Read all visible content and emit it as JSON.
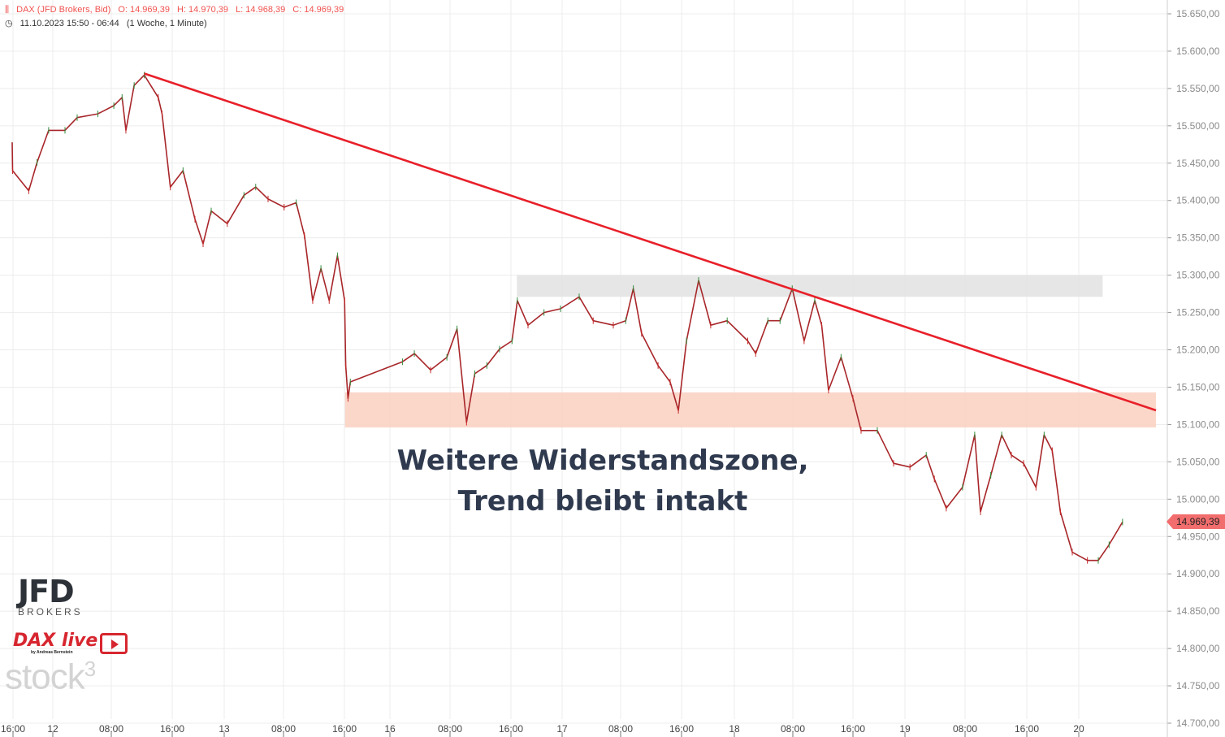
{
  "header": {
    "instrument": "DAX (JFD Brokers, Bid)",
    "open": "O: 14.969,39",
    "high": "H: 14.970,39",
    "low": "L: 14.968,39",
    "close": "C: 14.969,39",
    "range": "11.10.2023 15:50 - 06:44",
    "period": "(1 Woche, 1 Minute)",
    "icons": [
      "candlestick-icon",
      "clock-icon"
    ]
  },
  "annotation": {
    "line1": "Weitere Widerstandszone,",
    "line2": "Trend bleibt intakt"
  },
  "last_price_badge": "14.969,39",
  "logos": {
    "jfd": "JFD",
    "brokers": "BROKERS",
    "dax_live": "DAX live",
    "dax_by": "by Andreas Bernstein",
    "stock3": "stock",
    "stock3_sup": "3"
  },
  "colors": {
    "price_line": "#a8262a",
    "trendline": "#e8202a",
    "resistance_zone": "#fbd3c4",
    "upper_zone": "#e3e3e3",
    "annotation": "#2f3a4f",
    "badge": "#f26d6d",
    "header": "#ef5350"
  },
  "chart_data": {
    "type": "line",
    "title": "",
    "xlabel": "",
    "ylabel": "",
    "ylim": [
      14700,
      15650
    ],
    "grid": true,
    "y_ticks": [
      "15.650,00",
      "15.600,00",
      "15.550,00",
      "15.500,00",
      "15.450,00",
      "15.400,00",
      "15.350,00",
      "15.300,00",
      "15.250,00",
      "15.200,00",
      "15.150,00",
      "15.100,00",
      "15.050,00",
      "15.000,00",
      "14.950,00",
      "14.900,00",
      "14.850,00",
      "14.800,00",
      "14.750,00",
      "14.700,00"
    ],
    "x_ticks": [
      {
        "t": "2023-10-11 16:00",
        "label": "16:00"
      },
      {
        "t": "2023-10-12 00:00",
        "label": "12"
      },
      {
        "t": "2023-10-12 08:00",
        "label": "08:00"
      },
      {
        "t": "2023-10-12 16:00",
        "label": "16:00"
      },
      {
        "t": "2023-10-13 00:00",
        "label": "13"
      },
      {
        "t": "2023-10-13 08:00",
        "label": "08:00"
      },
      {
        "t": "2023-10-13 16:00",
        "label": "16:00"
      },
      {
        "t": "2023-10-16 00:00",
        "label": "16"
      },
      {
        "t": "2023-10-16 08:00",
        "label": "08:00"
      },
      {
        "t": "2023-10-16 16:00",
        "label": "16:00"
      },
      {
        "t": "2023-10-17 00:00",
        "label": "17"
      },
      {
        "t": "2023-10-17 08:00",
        "label": "08:00"
      },
      {
        "t": "2023-10-17 16:00",
        "label": "16:00"
      },
      {
        "t": "2023-10-18 00:00",
        "label": "18"
      },
      {
        "t": "2023-10-18 08:00",
        "label": "08:00"
      },
      {
        "t": "2023-10-18 16:00",
        "label": "16:00"
      },
      {
        "t": "2023-10-19 00:00",
        "label": "19"
      },
      {
        "t": "2023-10-19 08:00",
        "label": "08:00"
      },
      {
        "t": "2023-10-19 16:00",
        "label": "16:00"
      },
      {
        "t": "2023-10-20 00:00",
        "label": "20"
      }
    ],
    "series": [
      {
        "points": [
          [
            "2023-10-11 15:50",
            15478
          ],
          [
            "2023-10-11 15:55",
            15440
          ],
          [
            "2023-10-11 19:10",
            15413
          ],
          [
            "2023-10-11 20:50",
            15451
          ],
          [
            "2023-10-11 23:10",
            15494
          ],
          [
            "2023-10-12 01:40",
            15494
          ],
          [
            "2023-10-12 03:20",
            15511
          ],
          [
            "2023-10-12 06:10",
            15516
          ],
          [
            "2023-10-12 08:20",
            15527
          ],
          [
            "2023-10-12 09:25",
            15538
          ],
          [
            "2023-10-12 09:55",
            15494
          ],
          [
            "2023-10-12 11:00",
            15554
          ],
          [
            "2023-10-12 12:20",
            15568
          ],
          [
            "2023-10-12 14:10",
            15538
          ],
          [
            "2023-10-12 14:40",
            15516
          ],
          [
            "2023-10-12 15:45",
            15418
          ],
          [
            "2023-10-12 17:40",
            15440
          ],
          [
            "2023-10-12 19:30",
            15375
          ],
          [
            "2023-10-12 20:45",
            15342
          ],
          [
            "2023-10-12 22:00",
            15386
          ],
          [
            "2023-10-13 00:25",
            15369
          ],
          [
            "2023-10-13 02:40",
            15407
          ],
          [
            "2023-10-13 04:15",
            15418
          ],
          [
            "2023-10-13 05:55",
            15402
          ],
          [
            "2023-10-13 08:05",
            15391
          ],
          [
            "2023-10-13 09:40",
            15397
          ],
          [
            "2023-10-13 10:45",
            15353
          ],
          [
            "2023-10-13 11:50",
            15266
          ],
          [
            "2023-10-13 12:55",
            15309
          ],
          [
            "2023-10-13 14:00",
            15266
          ],
          [
            "2023-10-13 15:05",
            15326
          ],
          [
            "2023-10-13 16:10",
            15266
          ],
          [
            "2023-10-13 17:35",
            15179
          ],
          [
            "2023-10-13 20:25",
            15135
          ],
          [
            "2023-10-13 23:15",
            15157
          ],
          [
            "2023-10-16 01:40",
            15184
          ],
          [
            "2023-10-16 03:15",
            15195
          ],
          [
            "2023-10-16 05:25",
            15173
          ],
          [
            "2023-10-16 07:35",
            15190
          ],
          [
            "2023-10-16 08:55",
            15228
          ],
          [
            "2023-10-16 10:10",
            15103
          ],
          [
            "2023-10-16 11:15",
            15168
          ],
          [
            "2023-10-16 12:50",
            15179
          ],
          [
            "2023-10-16 14:30",
            15201
          ],
          [
            "2023-10-16 16:10",
            15212
          ],
          [
            "2023-10-16 17:00",
            15266
          ],
          [
            "2023-10-16 18:40",
            15233
          ],
          [
            "2023-10-16 21:10",
            15250
          ],
          [
            "2023-10-16 23:45",
            15255
          ],
          [
            "2023-10-17 02:20",
            15271
          ],
          [
            "2023-10-17 04:15",
            15239
          ],
          [
            "2023-10-17 07:00",
            15233
          ],
          [
            "2023-10-17 08:40",
            15239
          ],
          [
            "2023-10-17 09:40",
            15282
          ],
          [
            "2023-10-17 10:45",
            15222
          ],
          [
            "2023-10-17 12:55",
            15179
          ],
          [
            "2023-10-17 14:30",
            15157
          ],
          [
            "2023-10-17 15:35",
            15119
          ],
          [
            "2023-10-17 16:45",
            15212
          ],
          [
            "2023-10-17 18:35",
            15293
          ],
          [
            "2023-10-17 20:25",
            15233
          ],
          [
            "2023-10-17 22:55",
            15239
          ],
          [
            "2023-10-18 01:50",
            15212
          ],
          [
            "2023-10-18 02:55",
            15195
          ],
          [
            "2023-10-18 04:35",
            15239
          ],
          [
            "2023-10-18 06:15",
            15239
          ],
          [
            "2023-10-18 07:55",
            15282
          ],
          [
            "2023-10-18 09:30",
            15212
          ],
          [
            "2023-10-18 10:55",
            15266
          ],
          [
            "2023-10-18 11:50",
            15233
          ],
          [
            "2023-10-18 12:45",
            15146
          ],
          [
            "2023-10-18 14:25",
            15190
          ],
          [
            "2023-10-18 16:00",
            15135
          ],
          [
            "2023-10-18 17:15",
            15092
          ],
          [
            "2023-10-18 19:45",
            15092
          ],
          [
            "2023-10-18 22:15",
            15048
          ],
          [
            "2023-10-19 00:40",
            15043
          ],
          [
            "2023-10-19 02:50",
            15059
          ],
          [
            "2023-10-19 03:55",
            15027
          ],
          [
            "2023-10-19 05:30",
            14988
          ],
          [
            "2023-10-19 07:40",
            15016
          ],
          [
            "2023-10-19 09:15",
            15086
          ],
          [
            "2023-10-19 10:00",
            14983
          ],
          [
            "2023-10-19 11:20",
            15032
          ],
          [
            "2023-10-19 12:45",
            15086
          ],
          [
            "2023-10-19 14:00",
            15059
          ],
          [
            "2023-10-19 15:35",
            15048
          ],
          [
            "2023-10-19 17:25",
            15016
          ],
          [
            "2023-10-19 18:40",
            15086
          ],
          [
            "2023-10-19 19:55",
            15065
          ],
          [
            "2023-10-19 21:10",
            14983
          ],
          [
            "2023-10-19 23:00",
            14929
          ],
          [
            "2023-10-20 01:20",
            14918
          ],
          [
            "2023-10-20 03:00",
            14918
          ],
          [
            "2023-10-20 04:40",
            14939
          ],
          [
            "2023-10-20 06:44",
            14969.39
          ]
        ]
      }
    ],
    "trendline": {
      "from": [
        "2023-10-12 12:20",
        15570
      ],
      "to": [
        "2023-10-20 11:53",
        15119
      ]
    },
    "zones": [
      {
        "name": "upper-zone",
        "from": "2023-10-16 16:55",
        "to": "2023-10-20 03:40",
        "price_low": 15271,
        "price_high": 15300
      },
      {
        "name": "resistance-zone",
        "from": "2023-10-13 16:40",
        "to": "2023-10-20 11:53",
        "price_low": 15096,
        "price_high": 15143
      }
    ],
    "last_price": 14969.39
  }
}
